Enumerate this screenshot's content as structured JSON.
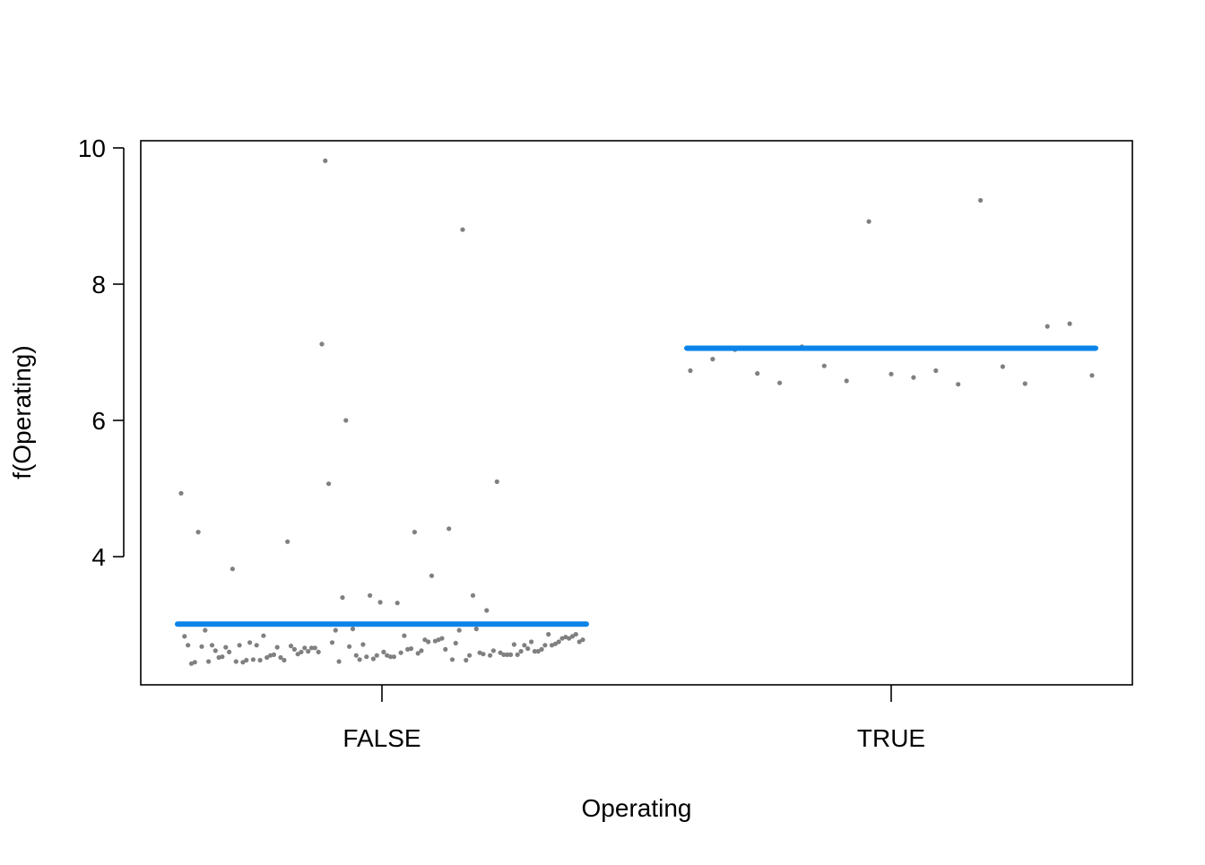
{
  "chart_data": {
    "type": "scatter",
    "title": "",
    "xlabel": "Operating",
    "ylabel": "f(Operating)",
    "categories": [
      "FALSE",
      "TRUE"
    ],
    "ylim": [
      2.2,
      10.1
    ],
    "yticks": [
      4,
      6,
      8,
      10
    ],
    "grid": false,
    "legend": "none",
    "fitted": [
      {
        "category": "FALSE",
        "value": 3.01
      },
      {
        "category": "TRUE",
        "value": 7.06
      }
    ],
    "series": [
      {
        "category": "FALSE",
        "points": [
          4.93,
          2.83,
          2.7,
          2.43,
          2.45,
          4.36,
          2.68,
          2.92,
          2.46,
          2.7,
          2.62,
          2.52,
          2.53,
          2.67,
          2.6,
          3.82,
          2.46,
          2.7,
          2.45,
          2.48,
          2.74,
          2.49,
          2.7,
          2.48,
          2.84,
          2.52,
          2.55,
          2.56,
          2.67,
          2.52,
          2.48,
          4.22,
          2.69,
          2.64,
          2.57,
          2.6,
          2.66,
          2.61,
          2.66,
          2.66,
          2.6,
          7.12,
          9.81,
          5.07,
          2.74,
          2.92,
          2.46,
          3.4,
          6.0,
          2.68,
          2.94,
          2.55,
          2.49,
          2.71,
          2.53,
          3.43,
          2.5,
          2.55,
          3.33,
          2.6,
          2.55,
          2.53,
          2.53,
          3.32,
          2.59,
          2.84,
          2.64,
          2.65,
          4.36,
          2.58,
          2.62,
          2.78,
          2.75,
          3.72,
          2.76,
          2.78,
          2.8,
          2.64,
          4.41,
          2.49,
          2.73,
          2.92,
          8.8,
          2.48,
          2.55,
          3.43,
          2.94,
          2.59,
          2.57,
          3.21,
          2.55,
          2.62,
          5.1,
          2.59,
          2.56,
          2.56,
          2.56,
          2.71,
          2.56,
          2.61,
          2.7,
          2.65,
          2.75,
          2.61,
          2.61,
          2.64,
          2.7,
          2.86,
          2.7,
          2.72,
          2.75,
          2.8,
          2.82,
          2.8,
          2.83,
          2.86,
          2.75,
          2.78
        ]
      },
      {
        "category": "TRUE",
        "points": [
          6.73,
          6.9,
          7.04,
          6.69,
          6.55,
          7.08,
          6.8,
          6.58,
          8.92,
          6.68,
          6.63,
          6.73,
          6.53,
          9.23,
          6.79,
          6.54,
          7.38,
          7.42,
          6.66
        ]
      }
    ]
  }
}
